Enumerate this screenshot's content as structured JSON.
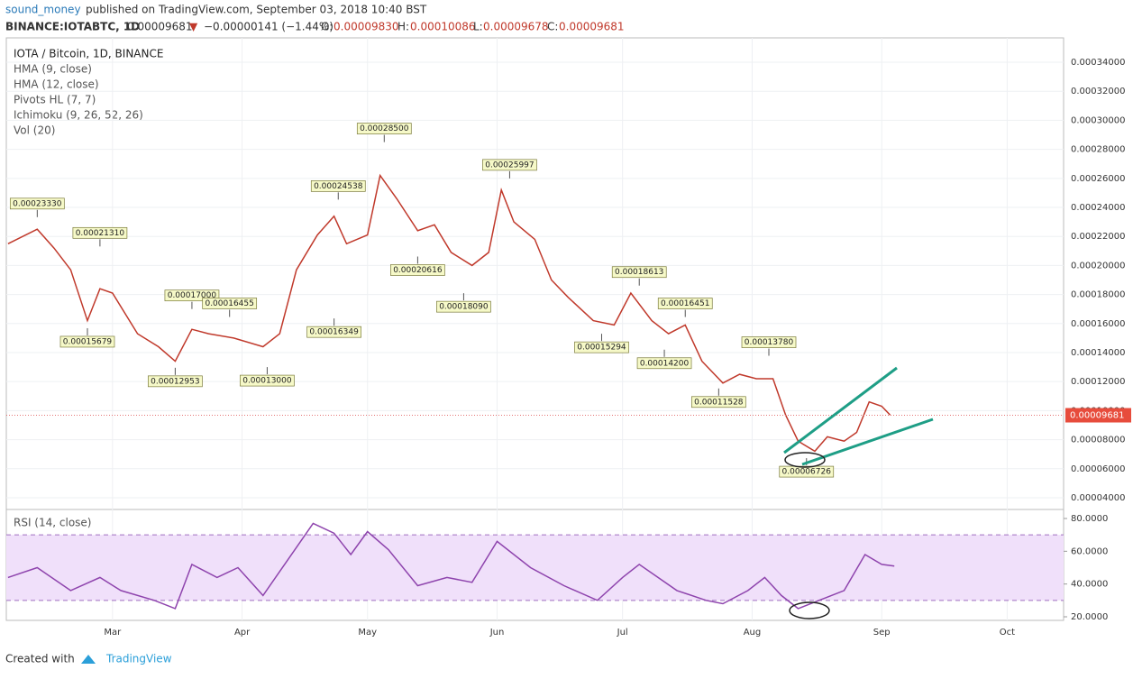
{
  "header": {
    "user": "sound_money",
    "published": "published on TradingView.com, September 03, 2018 10:40 BST",
    "symbol": "BINANCE:IOTABTC, 1D",
    "price": "0.00009681",
    "arrow": "▼",
    "change": "−0.00000141 (−1.44%)",
    "o_label": "O:",
    "o": "0.00009830",
    "h_label": "H:",
    "h": "0.00010086",
    "l_label": "L:",
    "l": "0.00009678",
    "c_label": "C:",
    "c": "0.00009681"
  },
  "legend": [
    "IOTA / Bitcoin, 1D, BINANCE",
    "HMA (9, close)",
    "HMA (12, close)",
    "Pivots HL (7, 7)",
    "Ichimoku (9, 26, 52, 26)",
    "Vol (20)"
  ],
  "footer": {
    "created": "Created with",
    "brand": "TradingView"
  },
  "chart_data": [
    {
      "type": "line",
      "color": "#c0392b",
      "grid": true,
      "xlim": [
        34.6,
        287.5
      ],
      "xticks": [
        {
          "value": 60,
          "label": "Mar"
        },
        {
          "value": 91,
          "label": "Apr"
        },
        {
          "value": 121,
          "label": "May"
        },
        {
          "value": 152,
          "label": "Jun"
        },
        {
          "value": 182,
          "label": "Jul"
        },
        {
          "value": 213,
          "label": "Aug"
        },
        {
          "value": 244,
          "label": "Sep"
        },
        {
          "value": 274,
          "label": "Oct"
        }
      ],
      "ylim": [
        3.19e-05,
        0.0003568
      ],
      "yticks": [
        {
          "value": 4e-05,
          "label": "0.00004000"
        },
        {
          "value": 6e-05,
          "label": "0.00006000"
        },
        {
          "value": 8e-05,
          "label": "0.00008000"
        },
        {
          "value": 0.0001,
          "label": "0.00010000"
        },
        {
          "value": 0.00012,
          "label": "0.00012000"
        },
        {
          "value": 0.00014,
          "label": "0.00014000"
        },
        {
          "value": 0.00016,
          "label": "0.00016000"
        },
        {
          "value": 0.00018,
          "label": "0.00018000"
        },
        {
          "value": 0.0002,
          "label": "0.00020000"
        },
        {
          "value": 0.00022,
          "label": "0.00022000"
        },
        {
          "value": 0.00024,
          "label": "0.00024000"
        },
        {
          "value": 0.00026,
          "label": "0.00026000"
        },
        {
          "value": 0.00028,
          "label": "0.00028000"
        },
        {
          "value": 0.0003,
          "label": "0.00030000"
        },
        {
          "value": 0.00032,
          "label": "0.00032000"
        },
        {
          "value": 0.00034,
          "label": "0.00034000"
        }
      ],
      "x": [
        35,
        42,
        46,
        50,
        54,
        57,
        60,
        66,
        71,
        75,
        79,
        83,
        89,
        96,
        100,
        104,
        109,
        113,
        116,
        121,
        124,
        128,
        133,
        137,
        141,
        146,
        150,
        153,
        156,
        161,
        165,
        169,
        175,
        180,
        184,
        189,
        193,
        197,
        201,
        206,
        210,
        214,
        218,
        221,
        224,
        228,
        231,
        235,
        238,
        241,
        244,
        246
      ],
      "values": [
        0.000215,
        0.000225,
        0.000212,
        0.000197,
        0.000162,
        0.000184,
        0.000181,
        0.000153,
        0.000144,
        0.000134,
        0.000156,
        0.000153,
        0.00015,
        0.000144,
        0.000153,
        0.000197,
        0.000221,
        0.000234,
        0.000215,
        0.000221,
        0.000262,
        0.000246,
        0.000224,
        0.000228,
        0.000209,
        0.0002,
        0.000209,
        0.000252,
        0.00023,
        0.000218,
        0.00019,
        0.000178,
        0.000162,
        0.000159,
        0.000181,
        0.000162,
        0.000153,
        0.000159,
        0.000134,
        0.000119,
        0.000125,
        0.000122,
        0.000122,
        9.7e-05,
        7.9e-05,
        7.2e-05,
        8.2e-05,
        7.9e-05,
        8.5e-05,
        0.000106,
        0.000103,
        9.7e-05
      ],
      "pivots": [
        {
          "x": 42,
          "value": 0.0002333,
          "label": "0.00023330"
        },
        {
          "x": 57,
          "value": 0.0002131,
          "label": "0.00021310"
        },
        {
          "x": 54,
          "value": 0.00015679,
          "label": "0.00015679"
        },
        {
          "x": 79,
          "value": 0.00017,
          "label": "0.00017000"
        },
        {
          "x": 75,
          "value": 0.00012953,
          "label": "0.00012953"
        },
        {
          "x": 88,
          "value": 0.00016455,
          "label": "0.00016455"
        },
        {
          "x": 97,
          "value": 0.00013,
          "label": "0.00013000"
        },
        {
          "x": 113,
          "value": 0.00016349,
          "label": "0.00016349"
        },
        {
          "x": 114,
          "value": 0.00024538,
          "label": "0.00024538"
        },
        {
          "x": 125,
          "value": 0.000285,
          "label": "0.00028500"
        },
        {
          "x": 133,
          "value": 0.00020616,
          "label": "0.00020616"
        },
        {
          "x": 144,
          "value": 0.0001809,
          "label": "0.00018090"
        },
        {
          "x": 155,
          "value": 0.00025997,
          "label": "0.00025997"
        },
        {
          "x": 186,
          "value": 0.00018613,
          "label": "0.00018613"
        },
        {
          "x": 177,
          "value": 0.00015294,
          "label": "0.00015294"
        },
        {
          "x": 192,
          "value": 0.000142,
          "label": "0.00014200"
        },
        {
          "x": 197,
          "value": 0.00016451,
          "label": "0.00016451"
        },
        {
          "x": 205,
          "value": 0.00011528,
          "label": "0.00011528"
        },
        {
          "x": 217,
          "value": 0.0001378,
          "label": "0.00013780"
        },
        {
          "x": 226,
          "value": 6.726e-05,
          "label": "0.00006726"
        }
      ],
      "last": {
        "value": 9.681e-05,
        "label": "0.00009681"
      }
    },
    {
      "type": "line",
      "title": "RSI (14, close)",
      "color": "#8e44ad",
      "xlim": [
        34.6,
        287.5
      ],
      "ylim": [
        17.8,
        85.5
      ],
      "band": [
        30,
        70
      ],
      "yticks": [
        {
          "value": 20,
          "label": "20.0000"
        },
        {
          "value": 40,
          "label": "40.0000"
        },
        {
          "value": 60,
          "label": "60.0000"
        },
        {
          "value": 80,
          "label": "80.0000"
        }
      ],
      "x": [
        35,
        42,
        50,
        57,
        62,
        70,
        75,
        79,
        85,
        90,
        96,
        102,
        108,
        113,
        117,
        121,
        126,
        133,
        140,
        146,
        152,
        160,
        168,
        176,
        182,
        186,
        195,
        202,
        206,
        212,
        216,
        220,
        224,
        229,
        235,
        240,
        244,
        247
      ],
      "values": [
        44,
        50,
        36,
        44,
        36,
        30,
        25,
        52,
        44,
        50,
        33,
        55,
        77,
        71,
        58,
        72,
        61,
        39,
        44,
        41,
        66,
        50,
        39,
        30,
        44,
        52,
        36,
        30,
        28,
        36,
        44,
        33,
        25,
        30,
        36,
        58,
        52,
        51
      ]
    }
  ]
}
